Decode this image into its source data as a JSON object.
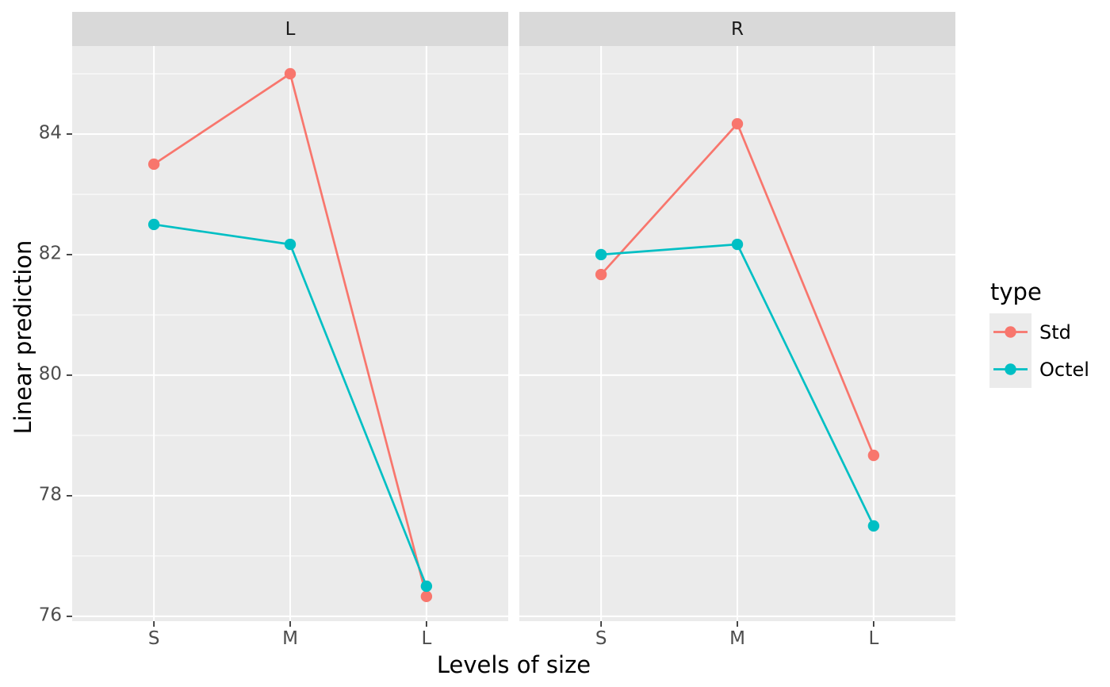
{
  "figure": {
    "background": "#FFFFFF",
    "panel_background": "#EBEBEB",
    "strip_background": "#D9D9D9",
    "grid_color": "#FFFFFF",
    "tick_mark_color": "#333333",
    "axis_text_color": "#4D4D4D",
    "strip_text_color": "#1A1A1A"
  },
  "chart_data": {
    "type": "line",
    "title": "",
    "xlabel": "Levels of size",
    "ylabel": "Linear prediction",
    "categories": [
      "S",
      "M",
      "L"
    ],
    "facets": [
      {
        "label": "L",
        "series": [
          {
            "name": "Std",
            "color": "#F8766D",
            "values": [
              83.5,
              85.0,
              76.33
            ]
          },
          {
            "name": "Octel",
            "color": "#00BFC4",
            "values": [
              82.5,
              82.17,
              76.5
            ]
          }
        ]
      },
      {
        "label": "R",
        "series": [
          {
            "name": "Std",
            "color": "#F8766D",
            "values": [
              81.67,
              84.17,
              78.67
            ]
          },
          {
            "name": "Octel",
            "color": "#00BFC4",
            "values": [
              82.0,
              82.17,
              77.5
            ]
          }
        ]
      }
    ],
    "y_ticks": [
      76,
      78,
      80,
      82,
      84
    ],
    "y_minor_gridlines": [
      77,
      79,
      81,
      83,
      85
    ],
    "ylim": [
      75.92,
      85.46
    ],
    "grid": "on",
    "legend": {
      "title": "type",
      "position": "right",
      "entries": [
        {
          "label": "Std",
          "color": "#F8766D"
        },
        {
          "label": "Octel",
          "color": "#00BFC4"
        }
      ]
    }
  }
}
